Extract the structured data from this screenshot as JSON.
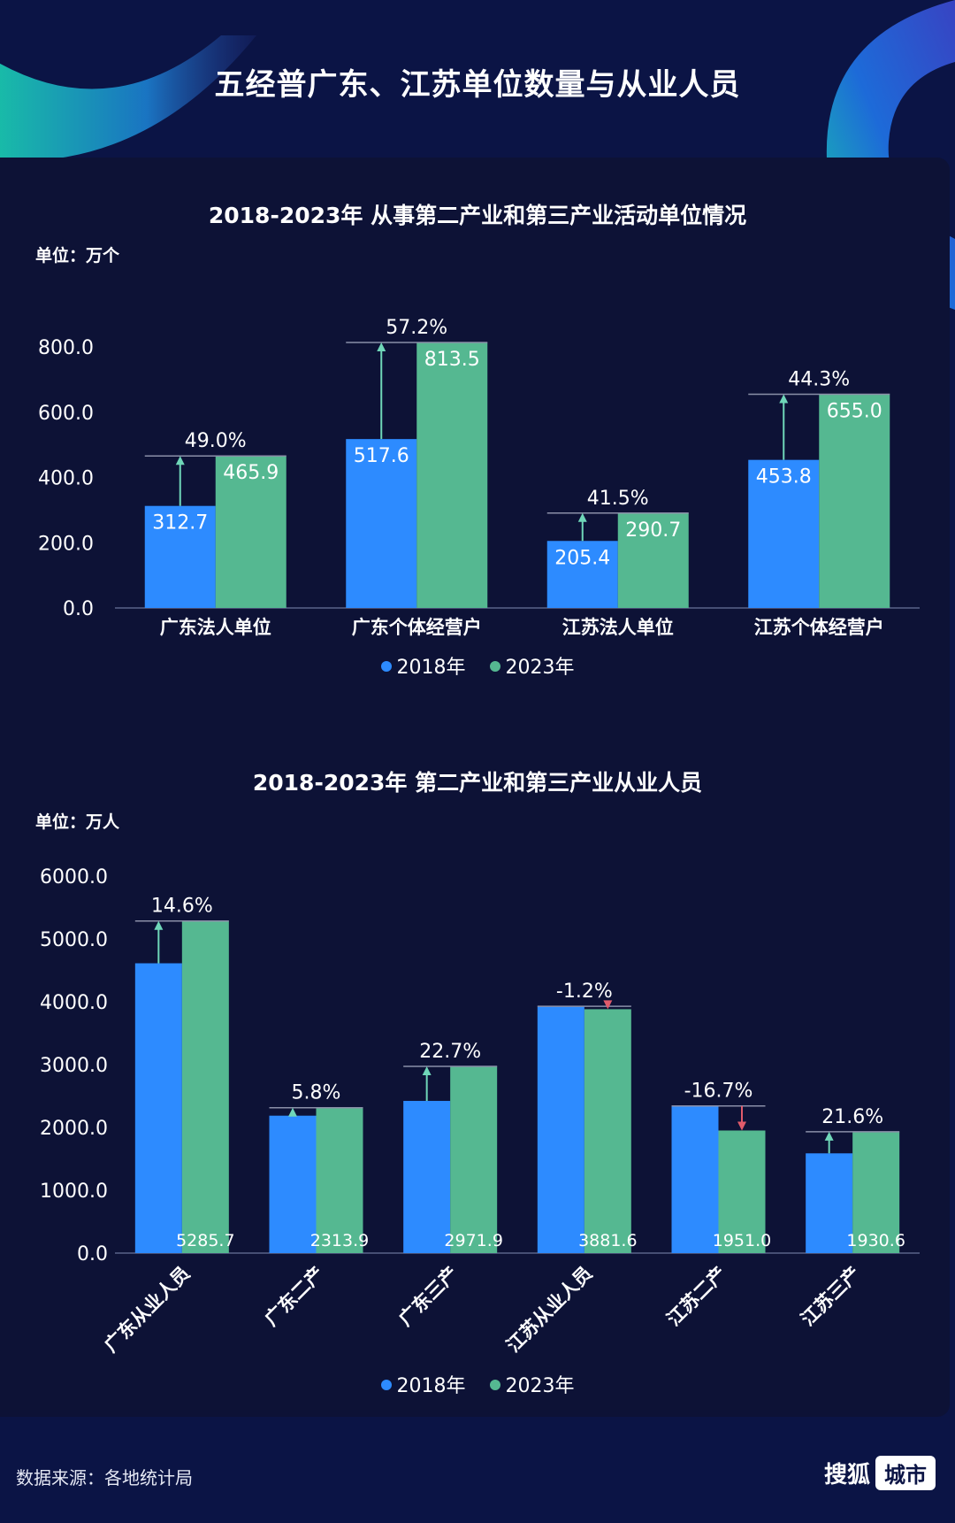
{
  "title": "五经普广东、江苏单位数量与从业人员",
  "colors": {
    "y2018": "#2d8bff",
    "y2023": "#55b891",
    "up": "#6fd6b8",
    "down": "#e05b6b"
  },
  "legend": [
    {
      "label": "2018年",
      "color": "#2d8bff"
    },
    {
      "label": "2023年",
      "color": "#55b891"
    }
  ],
  "source": "数据来源：各地统计局",
  "brand": {
    "name": "搜狐",
    "badge": "城市"
  },
  "chart_data": [
    {
      "type": "bar",
      "title": "2018-2023年 从事第二产业和第三产业活动单位情况",
      "unit": "单位：万个",
      "categories": [
        "广东法人单位",
        "广东个体经营户",
        "江苏法人单位",
        "江苏个体经营户"
      ],
      "series": [
        {
          "name": "2018年",
          "values": [
            312.7,
            517.6,
            205.4,
            453.8
          ]
        },
        {
          "name": "2023年",
          "values": [
            465.9,
            813.5,
            290.7,
            655.0
          ]
        }
      ],
      "changes": [
        "49.0%",
        "57.2%",
        "41.5%",
        "44.3%"
      ],
      "yticks": [
        "0.0",
        "200.0",
        "400.0",
        "600.0",
        "800.0"
      ],
      "ylim": [
        0,
        800
      ]
    },
    {
      "type": "bar",
      "title": "2018-2023年 第二产业和第三产业从业人员",
      "unit": "单位：万人",
      "categories": [
        "广东从业人员",
        "广东二产",
        "广东三产",
        "江苏从业人员",
        "江苏二产",
        "江苏三产"
      ],
      "series": [
        {
          "name": "2018年",
          "values": [
            4612.4,
            2187.1,
            2422.2,
            3928.6,
            2342.1,
            1587.6
          ]
        },
        {
          "name": "2023年",
          "values": [
            5285.7,
            2313.9,
            2971.9,
            3881.6,
            1951.0,
            1930.6
          ]
        }
      ],
      "labels_2023": [
        "5285.7",
        "2313.9",
        "2971.9",
        "3881.6",
        "1951.0",
        "1930.6"
      ],
      "changes": [
        "14.6%",
        "5.8%",
        "22.7%",
        "-1.2%",
        "-16.7%",
        "21.6%"
      ],
      "yticks": [
        "0.0",
        "1000.0",
        "2000.0",
        "3000.0",
        "4000.0",
        "5000.0",
        "6000.0"
      ],
      "ylim": [
        0,
        6000
      ]
    }
  ]
}
